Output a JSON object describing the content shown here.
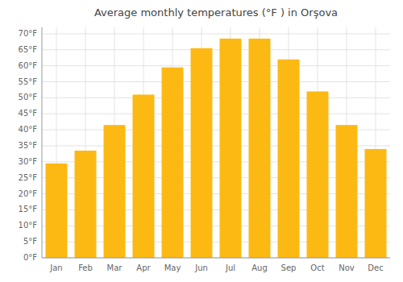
{
  "chart_data": {
    "type": "bar",
    "title": "Average monthly temperatures (°F ) in Orşova",
    "categories": [
      "Jan",
      "Feb",
      "Mar",
      "Apr",
      "May",
      "Jun",
      "Jul",
      "Aug",
      "Sep",
      "Oct",
      "Nov",
      "Dec"
    ],
    "values": [
      29.5,
      33.5,
      41.5,
      51.0,
      59.5,
      65.5,
      68.5,
      68.5,
      62.0,
      52.0,
      41.5,
      34.0
    ],
    "color": "#FDB913",
    "ylim": [
      0,
      72
    ],
    "yticks": [
      {
        "value": 0,
        "label": "0°F"
      },
      {
        "value": 5,
        "label": "5°F"
      },
      {
        "value": 10,
        "label": "10°F"
      },
      {
        "value": 15,
        "label": "15°F"
      },
      {
        "value": 20,
        "label": "20°F"
      },
      {
        "value": 25,
        "label": "25°F"
      },
      {
        "value": 30,
        "label": "30°F"
      },
      {
        "value": 35,
        "label": "35°F"
      },
      {
        "value": 40,
        "label": "40°F"
      },
      {
        "value": 45,
        "label": "45°F"
      },
      {
        "value": 50,
        "label": "50°F"
      },
      {
        "value": 55,
        "label": "55°F"
      },
      {
        "value": 60,
        "label": "60°F"
      },
      {
        "value": 65,
        "label": "65°F"
      },
      {
        "value": 70,
        "label": "70°F"
      }
    ],
    "grid": true
  }
}
